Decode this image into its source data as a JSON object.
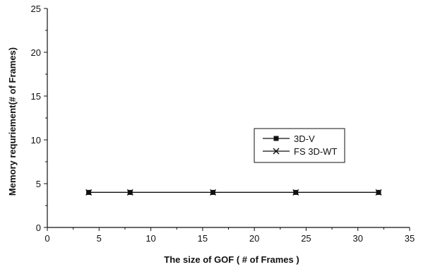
{
  "chart_data": {
    "type": "line",
    "title": "",
    "xlabel": "The size of GOF ( # of Frames )",
    "ylabel": "Memory requriement(# of Frames)",
    "xlim": [
      0,
      35
    ],
    "ylim": [
      0,
      25
    ],
    "x_ticks": [
      0,
      5,
      10,
      15,
      20,
      25,
      30,
      35
    ],
    "y_ticks": [
      0,
      5,
      10,
      15,
      20,
      25
    ],
    "grid": false,
    "legend_position": "right",
    "series": [
      {
        "name": "3D-V",
        "marker": "square",
        "color": "#111111",
        "x": [
          4,
          8,
          16,
          24,
          32
        ],
        "y": [
          4,
          4,
          4,
          4,
          4
        ]
      },
      {
        "name": "FS 3D-WT",
        "marker": "x",
        "color": "#111111",
        "x": [
          4,
          8,
          16,
          24,
          32
        ],
        "y": [
          4,
          4,
          4,
          4,
          4
        ]
      }
    ]
  }
}
